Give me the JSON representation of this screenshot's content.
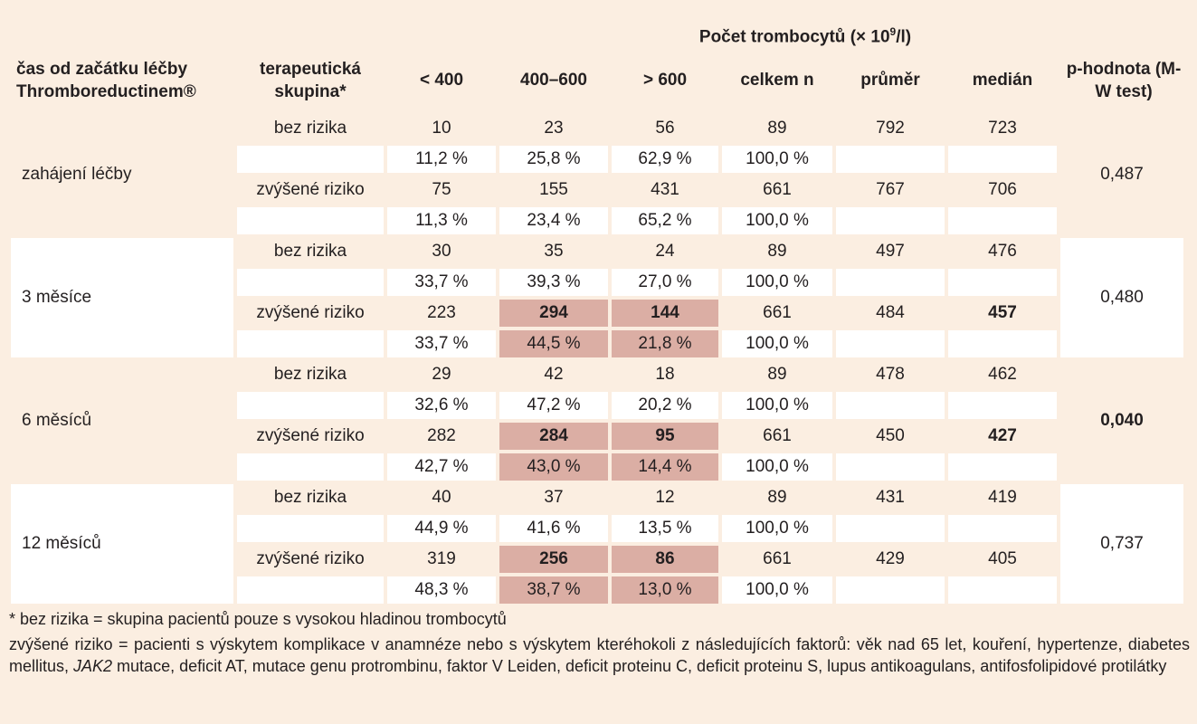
{
  "header": {
    "count_title": "Počet trombocytů (× 10",
    "count_title_sup": "9",
    "count_title_end": "/l)",
    "col_time": "čas od začátku léčby Thromboreductinem®",
    "col_group": "terapeutická skupina*",
    "col_lt400": "< 400",
    "col_400_600": "400–600",
    "col_gt600": "> 600",
    "col_total": "celkem n",
    "col_mean": "průměr",
    "col_median": "medián",
    "col_pvalue": "p-hodnota (M-W test)"
  },
  "blocks": [
    {
      "time": "zahájení léčby",
      "p_value": "0,487",
      "rows": [
        {
          "group": "bez rizika",
          "lt400": "10",
          "r400_600": "23",
          "gt600": "56",
          "total": "89",
          "mean": "792",
          "median": "723"
        },
        {
          "group": "",
          "lt400": "11,2 %",
          "r400_600": "25,8 %",
          "gt600": "62,9 %",
          "total": "100,0 %",
          "mean": "",
          "median": ""
        },
        {
          "group": "zvýšené riziko",
          "lt400": "75",
          "r400_600": "155",
          "gt600": "431",
          "total": "661",
          "mean": "767",
          "median": "706"
        },
        {
          "group": "",
          "lt400": "11,3 %",
          "r400_600": "23,4 %",
          "gt600": "65,2 %",
          "total": "100,0 %",
          "mean": "",
          "median": ""
        }
      ]
    },
    {
      "time": "3 měsíce",
      "p_value": "0,480",
      "rows": [
        {
          "group": "bez rizika",
          "lt400": "30",
          "r400_600": "35",
          "gt600": "24",
          "total": "89",
          "mean": "497",
          "median": "476"
        },
        {
          "group": "",
          "lt400": "33,7 %",
          "r400_600": "39,3 %",
          "gt600": "27,0 %",
          "total": "100,0 %",
          "mean": "",
          "median": ""
        },
        {
          "group": "zvýšené riziko",
          "lt400": "223",
          "r400_600": "294",
          "gt600": "144",
          "total": "661",
          "mean": "484",
          "median": "457"
        },
        {
          "group": "",
          "lt400": "33,7 %",
          "r400_600": "44,5 %",
          "gt600": "21,8 %",
          "total": "100,0 %",
          "mean": "",
          "median": ""
        }
      ]
    },
    {
      "time": "6 měsíců",
      "p_value": "0,040",
      "rows": [
        {
          "group": "bez rizika",
          "lt400": "29",
          "r400_600": "42",
          "gt600": "18",
          "total": "89",
          "mean": "478",
          "median": "462"
        },
        {
          "group": "",
          "lt400": "32,6 %",
          "r400_600": "47,2 %",
          "gt600": "20,2 %",
          "total": "100,0 %",
          "mean": "",
          "median": ""
        },
        {
          "group": "zvýšené riziko",
          "lt400": "282",
          "r400_600": "284",
          "gt600": "95",
          "total": "661",
          "mean": "450",
          "median": "427"
        },
        {
          "group": "",
          "lt400": "42,7 %",
          "r400_600": "43,0 %",
          "gt600": "14,4 %",
          "total": "100,0 %",
          "mean": "",
          "median": ""
        }
      ]
    },
    {
      "time": "12 měsíců",
      "p_value": "0,737",
      "rows": [
        {
          "group": "bez rizika",
          "lt400": "40",
          "r400_600": "37",
          "gt600": "12",
          "total": "89",
          "mean": "431",
          "median": "419"
        },
        {
          "group": "",
          "lt400": "44,9 %",
          "r400_600": "41,6 %",
          "gt600": "13,5 %",
          "total": "100,0 %",
          "mean": "",
          "median": ""
        },
        {
          "group": "zvýšené riziko",
          "lt400": "319",
          "r400_600": "256",
          "gt600": "86",
          "total": "661",
          "mean": "429",
          "median": "405"
        },
        {
          "group": "",
          "lt400": "48,3 %",
          "r400_600": "38,7 %",
          "gt600": "13,0 %",
          "total": "100,0 %",
          "mean": "",
          "median": ""
        }
      ]
    }
  ],
  "notes": {
    "note1": "* bez rizika = skupina pacientů pouze s vysokou hladinou trombocytů",
    "note2_a": "zvýšené riziko = pacienti s výskytem komplikace v anamnéze nebo s výskytem kteréhokoli z následujících faktorů: věk nad 65 let, kouření, hypertenze, diabetes mellitus, ",
    "note2_jak": "JAK2",
    "note2_b": " mutace, deficit AT, mutace genu protrombinu, faktor V Leiden, deficit proteinu C, deficit proteinu S, lupus antikoagulans, antifosfolipidové protilátky"
  },
  "colors": {
    "background": "#fbeee1",
    "cell_white": "#ffffff",
    "cell_highlight": "#dbaea4"
  }
}
